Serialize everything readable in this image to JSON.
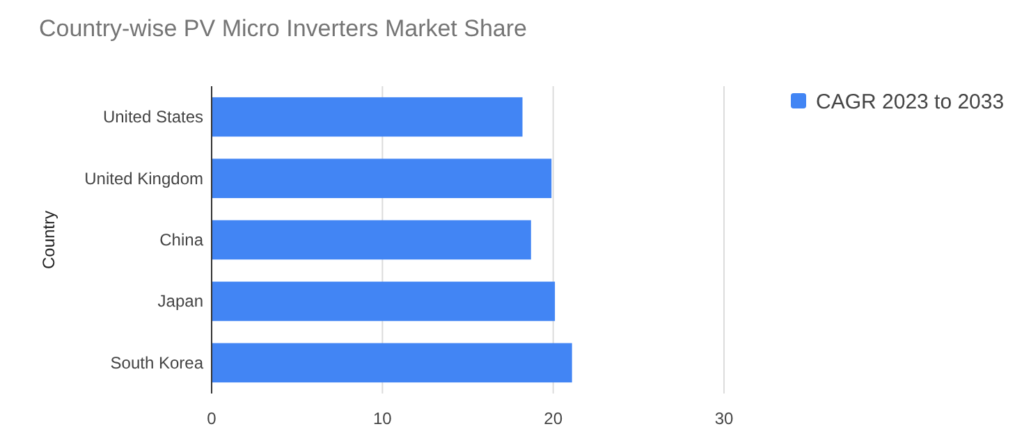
{
  "chart_data": {
    "type": "bar",
    "orientation": "horizontal",
    "title": "Country-wise PV Micro Inverters Market Share",
    "ylabel": "Country",
    "categories": [
      "United States",
      "United Kingdom",
      "China",
      "Japan",
      "South Korea"
    ],
    "series": [
      {
        "name": "CAGR 2023 to 2033",
        "color": "#4285f4",
        "values": [
          18.2,
          19.9,
          18.7,
          20.1,
          21.1
        ]
      }
    ],
    "xlim": [
      0,
      30
    ],
    "xticks": [
      0,
      10,
      20,
      30
    ],
    "grid": "x",
    "legend": "top right"
  }
}
